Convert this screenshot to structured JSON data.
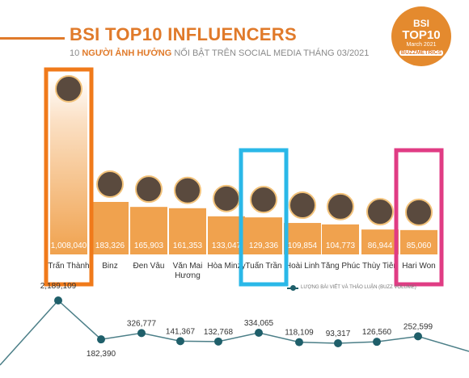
{
  "header": {
    "title": "BSI TOP10 INFLUENCERS",
    "subtitle_prefix": "10",
    "subtitle_bold": "NGƯỜI ẢNH HƯỞNG",
    "subtitle_rest": "NỔI BẬT TRÊN SOCIAL MEDIA THÁNG 03/2021"
  },
  "badge": {
    "line1": "BSI",
    "line2": "TOP10",
    "line3": "March 2021",
    "line4": "BUZZMETRICS"
  },
  "legend": {
    "label": "LƯỢNG BÀI VIẾT VÀ THẢO LUẬN (BUZZ VOLUME)"
  },
  "colors": {
    "accent": "#e07a2a",
    "bar": "#f0a24e",
    "line": "#1f5f6a",
    "frame_orange": "#f07a1a",
    "frame_blue": "#2ab8e8",
    "frame_pink": "#e03c84"
  },
  "chart_data": [
    {
      "type": "bar",
      "categories": [
        "Trấn Thành",
        "Binz",
        "Đen Vâu",
        "Văn Mai Hương",
        "Hòa Minzy",
        "Tuấn Trần",
        "Hoài Linh",
        "Tăng Phúc",
        "Thùy Tiên",
        "Hari Won"
      ],
      "values": [
        1008040,
        183326,
        165903,
        161353,
        133047,
        129336,
        109854,
        104773,
        86944,
        85060
      ],
      "value_labels": [
        "1,008,040",
        "183,326",
        "165,903",
        "161,353",
        "133,047",
        "129,336",
        "109,854",
        "104,773",
        "86,944",
        "85,060"
      ],
      "highlighted": [
        {
          "category": "Trấn Thành",
          "frame_color": "orange"
        },
        {
          "category": "Tuấn Trần",
          "frame_color": "blue"
        },
        {
          "category": "Hari Won",
          "frame_color": "pink"
        }
      ]
    },
    {
      "type": "line",
      "name": "LƯỢNG BÀI VIẾT VÀ THẢO LUẬN (BUZZ VOLUME)",
      "categories": [
        "Trấn Thành",
        "Binz",
        "Đen Vâu",
        "Văn Mai Hương",
        "Hòa Minzy",
        "Tuấn Trần",
        "Hoài Linh",
        "Tăng Phúc",
        "Thùy Tiên",
        "Hari Won"
      ],
      "values": [
        2189109,
        182390,
        326777,
        141367,
        132768,
        334065,
        118109,
        93317,
        126560,
        252599
      ],
      "value_labels": [
        "2,189,109",
        "182,390",
        "326,777",
        "141,367",
        "132,768",
        "334,065",
        "118,109",
        "93,317",
        "126,560",
        "252,599"
      ]
    }
  ]
}
